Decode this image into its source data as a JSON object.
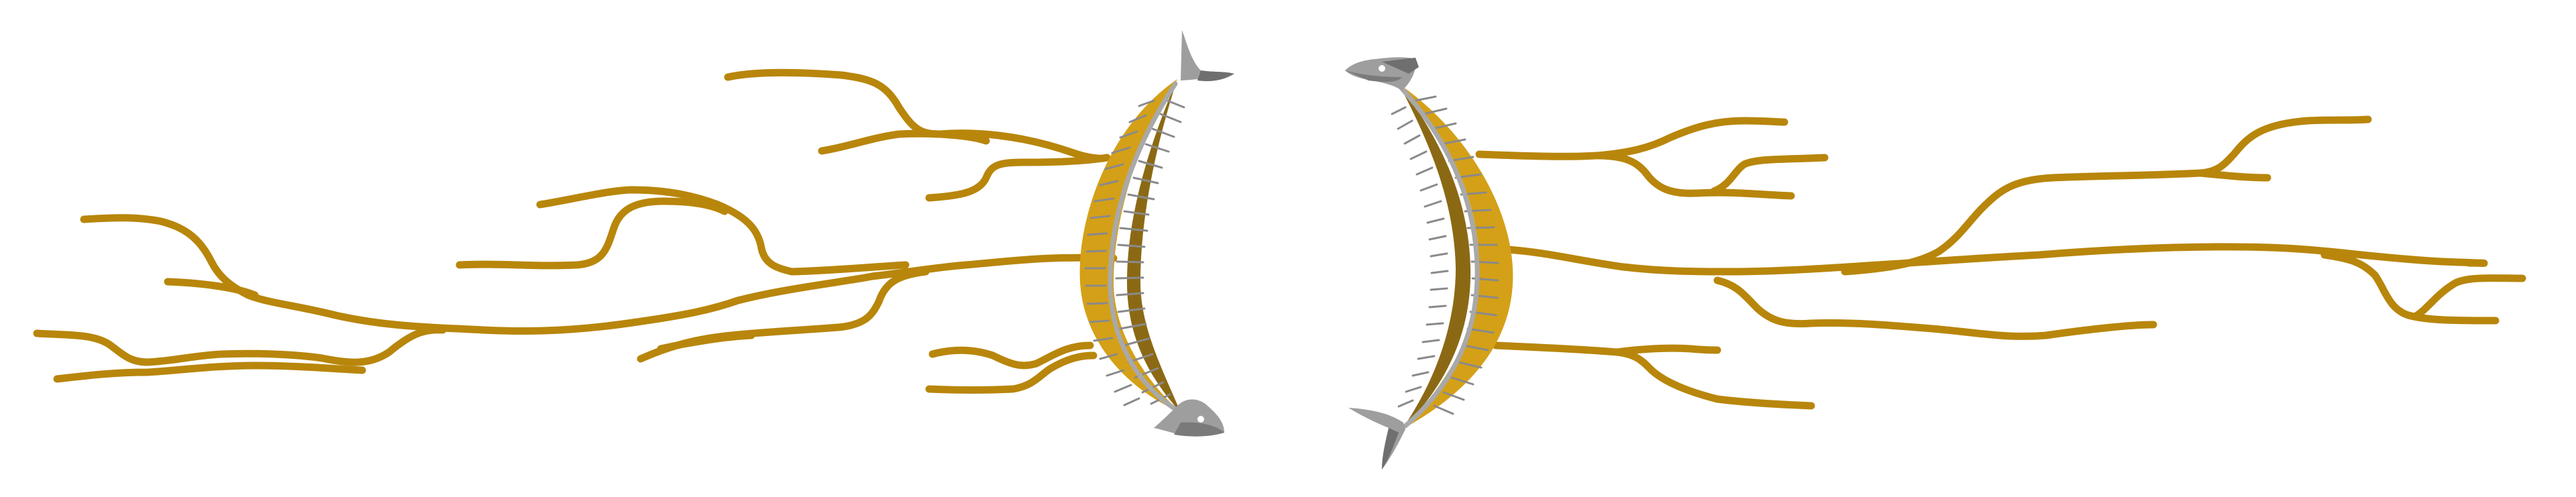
{
  "colors": {
    "background": "#ffffff",
    "root": "#b8860b",
    "root_highlight": "#c9961a",
    "spine_light": "#d4a017",
    "spine_dark": "#8b6914",
    "backbone": "#a9a9a9",
    "fish_head": "#9e9e9e",
    "fish_head_shadow": "#6f6f6f",
    "rib": "#8a8a8a"
  },
  "elements": {
    "left_roots": "golden-root-network",
    "right_roots": "golden-root-network",
    "left_fish": "fish-skeleton",
    "right_fish": "fish-skeleton"
  }
}
